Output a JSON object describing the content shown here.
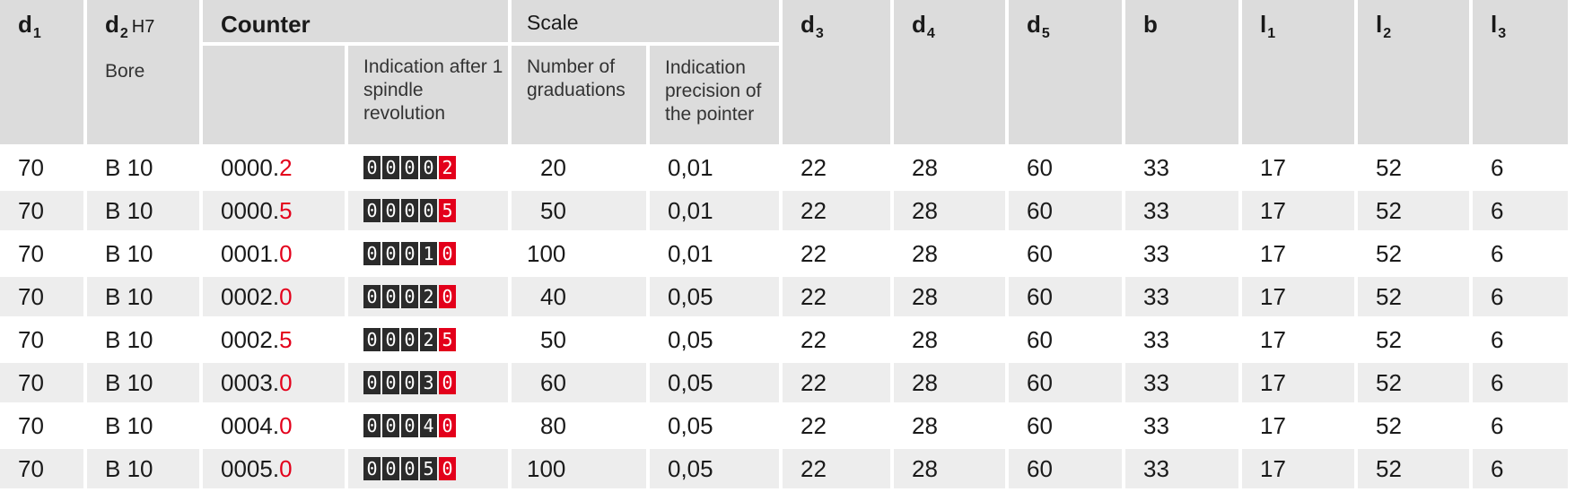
{
  "header": {
    "d1": {
      "main": "d",
      "sub": "1"
    },
    "d2": {
      "main": "d",
      "sub": "2",
      "tolerance": "H7",
      "label": "Bore"
    },
    "counter": "Counter",
    "indication_after": "Indication after 1 spindle revolution",
    "scale": "Scale",
    "number_of_graduations": "Number of graduations",
    "indication_precision": "Indication precision of the pointer",
    "d3": {
      "main": "d",
      "sub": "3"
    },
    "d4": {
      "main": "d",
      "sub": "4"
    },
    "d5": {
      "main": "d",
      "sub": "5"
    },
    "b": {
      "main": "b"
    },
    "l1": {
      "main": "l",
      "sub": "1"
    },
    "l2": {
      "main": "l",
      "sub": "2"
    },
    "l3": {
      "main": "l",
      "sub": "3"
    }
  },
  "rows": [
    {
      "d1": "70",
      "d2": "B 10",
      "counter_int": "0000.",
      "counter_dec": "2",
      "digits": [
        "0",
        "0",
        "0",
        "0"
      ],
      "digit_last": "2",
      "graduations": "20",
      "precision": "0,01",
      "d3": "22",
      "d4": "28",
      "d5": "60",
      "b": "33",
      "l1": "17",
      "l2": "52",
      "l3": "6"
    },
    {
      "d1": "70",
      "d2": "B 10",
      "counter_int": "0000.",
      "counter_dec": "5",
      "digits": [
        "0",
        "0",
        "0",
        "0"
      ],
      "digit_last": "5",
      "graduations": "50",
      "precision": "0,01",
      "d3": "22",
      "d4": "28",
      "d5": "60",
      "b": "33",
      "l1": "17",
      "l2": "52",
      "l3": "6"
    },
    {
      "d1": "70",
      "d2": "B 10",
      "counter_int": "0001.",
      "counter_dec": "0",
      "digits": [
        "0",
        "0",
        "0",
        "1"
      ],
      "digit_last": "0",
      "graduations": "100",
      "precision": "0,01",
      "d3": "22",
      "d4": "28",
      "d5": "60",
      "b": "33",
      "l1": "17",
      "l2": "52",
      "l3": "6"
    },
    {
      "d1": "70",
      "d2": "B 10",
      "counter_int": "0002.",
      "counter_dec": "0",
      "digits": [
        "0",
        "0",
        "0",
        "2"
      ],
      "digit_last": "0",
      "graduations": "40",
      "precision": "0,05",
      "d3": "22",
      "d4": "28",
      "d5": "60",
      "b": "33",
      "l1": "17",
      "l2": "52",
      "l3": "6"
    },
    {
      "d1": "70",
      "d2": "B 10",
      "counter_int": "0002.",
      "counter_dec": "5",
      "digits": [
        "0",
        "0",
        "0",
        "2"
      ],
      "digit_last": "5",
      "graduations": "50",
      "precision": "0,05",
      "d3": "22",
      "d4": "28",
      "d5": "60",
      "b": "33",
      "l1": "17",
      "l2": "52",
      "l3": "6"
    },
    {
      "d1": "70",
      "d2": "B 10",
      "counter_int": "0003.",
      "counter_dec": "0",
      "digits": [
        "0",
        "0",
        "0",
        "3"
      ],
      "digit_last": "0",
      "graduations": "60",
      "precision": "0,05",
      "d3": "22",
      "d4": "28",
      "d5": "60",
      "b": "33",
      "l1": "17",
      "l2": "52",
      "l3": "6"
    },
    {
      "d1": "70",
      "d2": "B 10",
      "counter_int": "0004.",
      "counter_dec": "0",
      "digits": [
        "0",
        "0",
        "0",
        "4"
      ],
      "digit_last": "0",
      "graduations": "80",
      "precision": "0,05",
      "d3": "22",
      "d4": "28",
      "d5": "60",
      "b": "33",
      "l1": "17",
      "l2": "52",
      "l3": "6"
    },
    {
      "d1": "70",
      "d2": "B 10",
      "counter_int": "0005.",
      "counter_dec": "0",
      "digits": [
        "0",
        "0",
        "0",
        "5"
      ],
      "digit_last": "0",
      "graduations": "100",
      "precision": "0,05",
      "d3": "22",
      "d4": "28",
      "d5": "60",
      "b": "33",
      "l1": "17",
      "l2": "52",
      "l3": "6"
    }
  ],
  "colors": {
    "header_bg": "#dcdcdc",
    "row_alt_bg": "#ededed",
    "accent_red": "#e3001b",
    "digit_bg": "#2b2b2b"
  }
}
